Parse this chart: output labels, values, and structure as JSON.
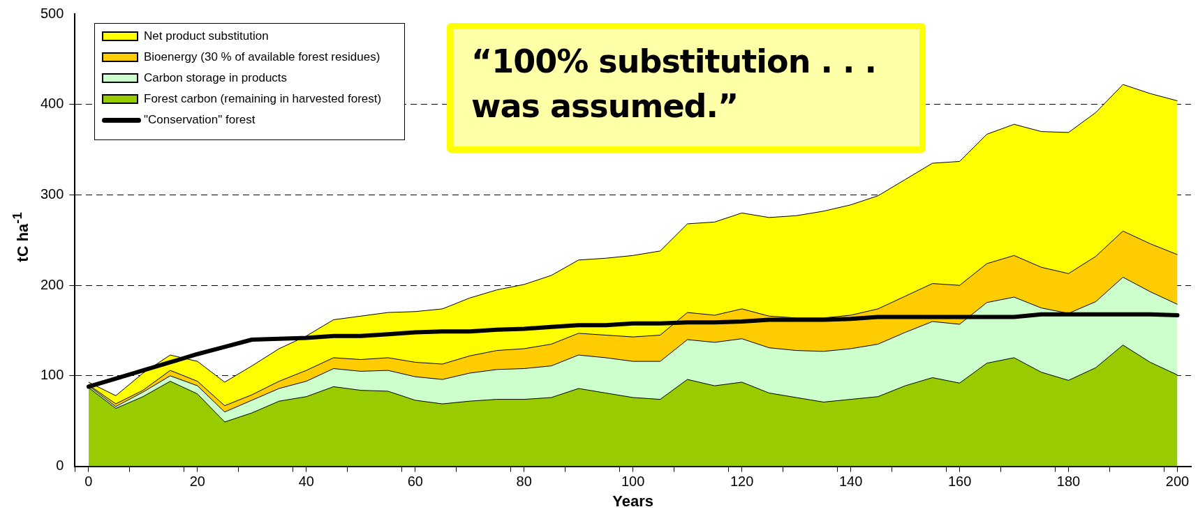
{
  "chart_data": {
    "type": "area",
    "stacked": true,
    "xlabel": "Years",
    "ylabel": "tC ha$^{-1}$",
    "x": [
      0,
      5,
      10,
      15,
      20,
      25,
      30,
      35,
      40,
      45,
      50,
      55,
      60,
      65,
      70,
      75,
      80,
      85,
      90,
      95,
      100,
      105,
      110,
      115,
      120,
      125,
      130,
      135,
      140,
      145,
      150,
      155,
      160,
      165,
      170,
      175,
      180,
      185,
      190,
      195,
      200
    ],
    "series": [
      {
        "name": "Forest carbon (remaining in harvested forest)",
        "color": "#99cc00",
        "values": [
          87,
          64,
          77,
          94,
          80,
          49,
          59,
          72,
          77,
          88,
          84,
          83,
          73,
          69,
          72,
          74,
          74,
          76,
          86,
          81,
          76,
          74,
          96,
          89,
          93,
          81,
          76,
          71,
          74,
          77,
          89,
          98,
          92,
          114,
          120,
          104,
          95,
          109,
          134,
          115,
          101
        ]
      },
      {
        "name": "Carbon storage in products",
        "color": "#ccffcc",
        "values": [
          2,
          2,
          5,
          6,
          9,
          11,
          14,
          14,
          17,
          20,
          21,
          23,
          26,
          27,
          31,
          33,
          34,
          35,
          37,
          39,
          40,
          42,
          44,
          48,
          48,
          50,
          52,
          56,
          56,
          58,
          59,
          62,
          65,
          67,
          67,
          71,
          74,
          73,
          75,
          78,
          78
        ]
      },
      {
        "name": "Bioenergy (30 % of available forest residues)",
        "color": "#ffcc00",
        "values": [
          1,
          3,
          2,
          6,
          5,
          7,
          6,
          8,
          12,
          12,
          13,
          14,
          16,
          17,
          19,
          21,
          22,
          24,
          24,
          25,
          27,
          29,
          30,
          30,
          33,
          35,
          36,
          37,
          37,
          39,
          40,
          42,
          43,
          43,
          46,
          45,
          44,
          50,
          51,
          53,
          55
        ]
      },
      {
        "name": "Net product substitution",
        "color": "#ffff00",
        "values": [
          3,
          9,
          19,
          17,
          22,
          26,
          32,
          36,
          38,
          42,
          48,
          50,
          56,
          61,
          64,
          67,
          71,
          76,
          81,
          85,
          90,
          93,
          98,
          103,
          106,
          109,
          113,
          118,
          122,
          125,
          129,
          133,
          137,
          143,
          145,
          150,
          156,
          159,
          162,
          166,
          170
        ]
      },
      {
        "name": "\"Conservation\" forest",
        "type": "line",
        "color": "#000000",
        "values": [
          88,
          97,
          106,
          115,
          124,
          132,
          140,
          141,
          142,
          144,
          144,
          146,
          148,
          149,
          149,
          151,
          152,
          154,
          156,
          156,
          158,
          158,
          159,
          159,
          160,
          162,
          162,
          162,
          163,
          165,
          165,
          165,
          165,
          165,
          165,
          168,
          168,
          168,
          168,
          168,
          167
        ]
      }
    ],
    "xlim": [
      -2.5,
      202.5
    ],
    "xticks": [
      0,
      20,
      40,
      60,
      80,
      100,
      120,
      140,
      160,
      180,
      200,
      {
        "value": -2.5,
        "label": null
      },
      {
        "value": 7.5,
        "label": null
      },
      {
        "value": 17.5,
        "label": null
      },
      {
        "value": 27.5,
        "label": null
      },
      {
        "value": 37.5,
        "label": null
      },
      {
        "value": 47.5,
        "label": null
      },
      {
        "value": 57.5,
        "label": null
      },
      {
        "value": 67.5,
        "label": null
      },
      {
        "value": 77.5,
        "label": null
      },
      {
        "value": 87.5,
        "label": null
      },
      {
        "value": 97.5,
        "label": null
      },
      {
        "value": 107.5,
        "label": null
      },
      {
        "value": 117.5,
        "label": null
      },
      {
        "value": 127.5,
        "label": null
      },
      {
        "value": 137.5,
        "label": null
      },
      {
        "value": 147.5,
        "label": null
      },
      {
        "value": 157.5,
        "label": null
      },
      {
        "value": 167.5,
        "label": null
      },
      {
        "value": 177.5,
        "label": null
      },
      {
        "value": 187.5,
        "label": null
      },
      {
        "value": 197.5,
        "label": null
      }
    ],
    "ylim": [
      0,
      500
    ],
    "yticks": [
      0,
      100,
      200,
      300,
      400,
      500
    ],
    "grid": "y",
    "legend": "top left",
    "marker": "none",
    "annotations": [
      "“100% substitution  . . .\nwas assumed.”"
    ]
  }
}
